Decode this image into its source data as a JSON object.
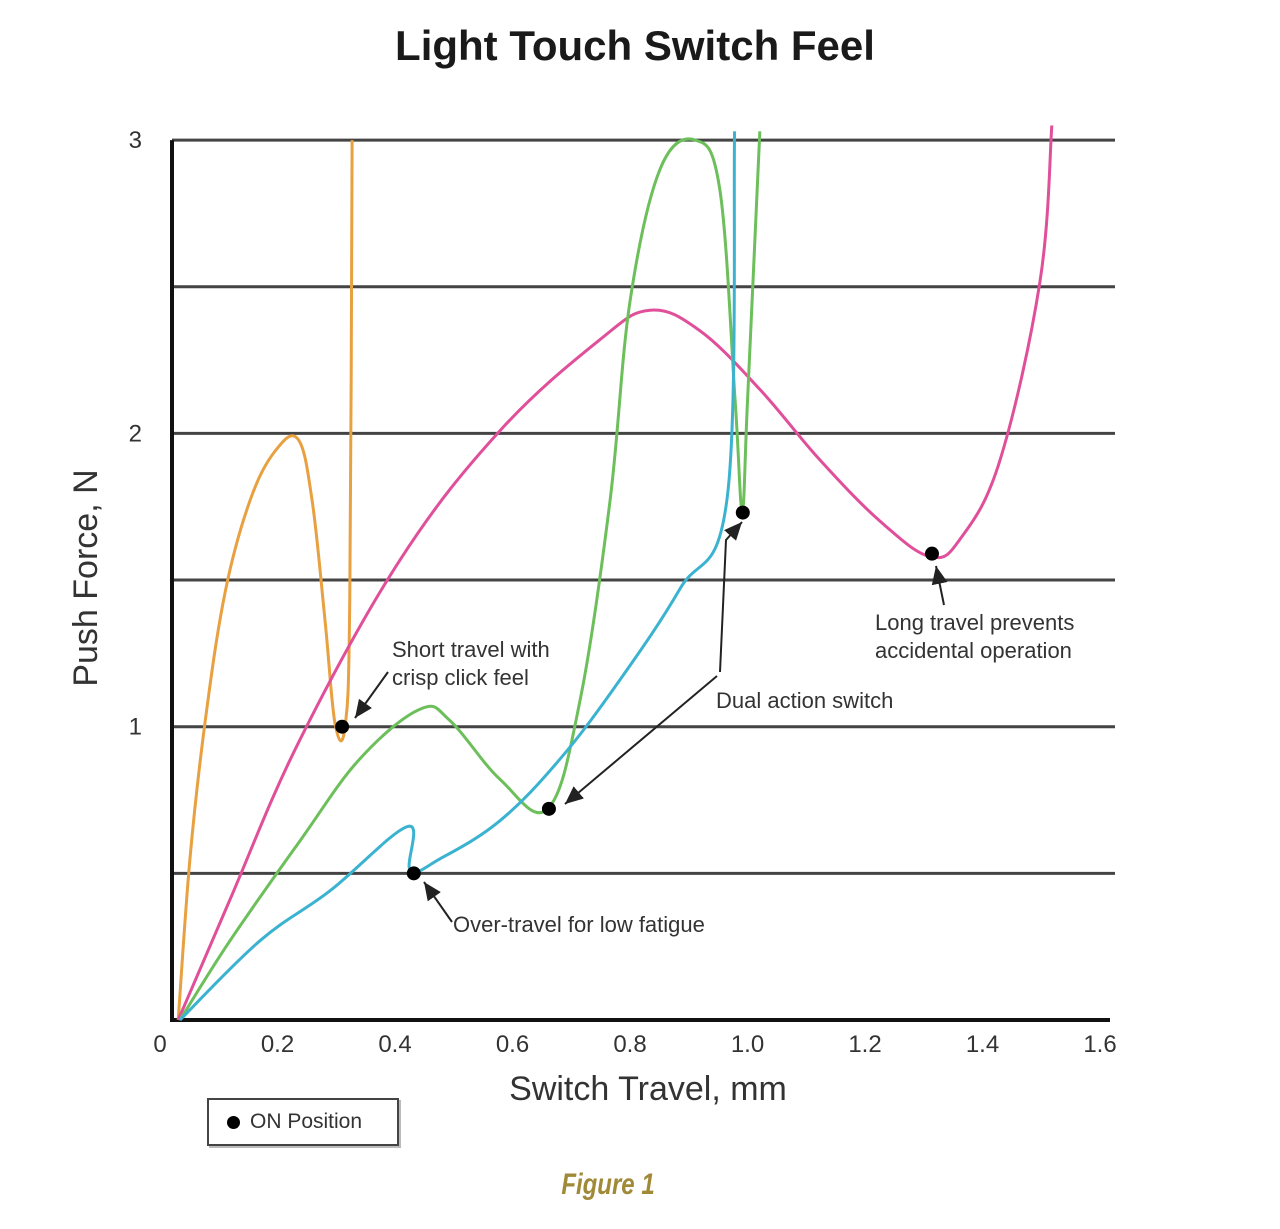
{
  "chart_data": {
    "type": "line",
    "title": "Light Touch Switch Feel",
    "xlabel": "Switch Travel, mm",
    "ylabel": "Push Force, N",
    "xlim": [
      0,
      1.6
    ],
    "ylim": [
      0,
      3
    ],
    "xticks": [
      "0",
      "0.2",
      "0.4",
      "0.6",
      "0.8",
      "1.0",
      "1.2",
      "1.4",
      "1.6"
    ],
    "xtick_values": [
      0,
      0.2,
      0.4,
      0.6,
      0.8,
      1.0,
      1.2,
      1.4,
      1.6
    ],
    "yticks": [
      "1",
      "2",
      "3"
    ],
    "ytick_values": [
      1,
      2,
      3
    ],
    "gridlines_y": [
      0.5,
      1,
      1.5,
      2,
      2.5,
      3
    ],
    "series": [
      {
        "name": "short travel",
        "color": "#e8a040",
        "x": [
          0.031,
          0.051,
          0.077,
          0.111,
          0.153,
          0.196,
          0.235,
          0.259,
          0.281,
          0.298,
          0.315,
          0.323,
          0.327
        ],
        "y": [
          0,
          0.55,
          1.02,
          1.46,
          1.77,
          1.94,
          1.98,
          1.77,
          1.36,
          1.01,
          1.0,
          1.43,
          3.0
        ]
      },
      {
        "name": "long travel",
        "color": "#e0509a",
        "x": [
          0.031,
          0.119,
          0.238,
          0.409,
          0.579,
          0.749,
          0.834,
          0.919,
          1.021,
          1.123,
          1.226,
          1.311,
          1.362,
          1.43,
          1.498,
          1.518
        ],
        "y": [
          0,
          0.41,
          0.955,
          1.57,
          2.01,
          2.32,
          2.42,
          2.35,
          2.15,
          1.91,
          1.7,
          1.58,
          1.64,
          1.91,
          2.52,
          3.05
        ]
      },
      {
        "name": "dual action",
        "color": "#6cbf5a",
        "x": [
          0.034,
          0.119,
          0.238,
          0.34,
          0.443,
          0.494,
          0.579,
          0.66,
          0.715,
          0.766,
          0.8,
          0.851,
          0.911,
          0.953,
          0.979,
          0.991,
          1.0,
          1.021
        ],
        "y": [
          0,
          0.27,
          0.61,
          0.89,
          1.06,
          1.02,
          0.82,
          0.72,
          1.09,
          1.77,
          2.45,
          2.9,
          3.0,
          2.83,
          2.11,
          1.74,
          2.11,
          3.03
        ]
      },
      {
        "name": "over-travel",
        "color": "#3bb3d0",
        "x": [
          0.034,
          0.17,
          0.289,
          0.422,
          0.426,
          0.477,
          0.579,
          0.681,
          0.783,
          0.885,
          0.966,
          0.978
        ],
        "y": [
          0,
          0.27,
          0.44,
          0.66,
          0.51,
          0.55,
          0.68,
          0.89,
          1.16,
          1.47,
          1.79,
          3.03
        ]
      }
    ],
    "on_points": [
      {
        "x": 0.31,
        "y": 1.0
      },
      {
        "x": 0.432,
        "y": 0.5
      },
      {
        "x": 0.662,
        "y": 0.72
      },
      {
        "x": 0.992,
        "y": 1.73
      },
      {
        "x": 1.314,
        "y": 1.59
      }
    ],
    "annotations": [
      {
        "lines": [
          "Short travel with",
          "crisp click feel"
        ]
      },
      {
        "lines": [
          "Over-travel for low fatigue"
        ]
      },
      {
        "lines": [
          "Dual action switch"
        ]
      },
      {
        "lines": [
          "Long travel prevents",
          "accidental operation"
        ]
      }
    ],
    "legend": {
      "label": "ON Position",
      "placement": "bottom-left"
    }
  },
  "caption": "Figure 1"
}
